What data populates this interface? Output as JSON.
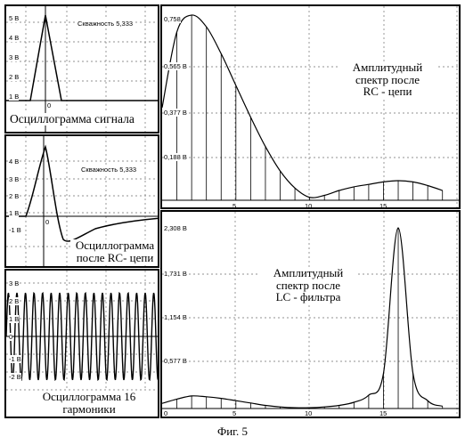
{
  "figure_caption": "Фиг. 5",
  "colors": {
    "line": "#000000",
    "grid": "#6f6f6f",
    "background": "#ffffff"
  },
  "panels": {
    "osc_signal": {
      "caption": "Осциллограмма сигнала",
      "duty_label": "Скважность 5,333",
      "y_ticks": [
        "5 В",
        "4 В",
        "3 В",
        "2 В",
        "1 В"
      ],
      "x_tick": "0"
    },
    "osc_rc": {
      "caption_line1": "Осциллограмма",
      "caption_line2": "после  RC- цепи",
      "duty_label": "Скважность 5,333",
      "y_ticks": [
        "4 В",
        "3 В",
        "2 В",
        "1 В",
        "-1 В"
      ],
      "x_tick": "0"
    },
    "osc_h16": {
      "caption_line1": "Осциллограмма 16",
      "caption_line2": "гармоники",
      "y_ticks": [
        "3 В",
        "2 В",
        "1 В",
        "0",
        "-1 В",
        "-2 В"
      ]
    },
    "spec_rc": {
      "caption_line1": "Амплитудный",
      "caption_line2": "спектр после",
      "caption_line3": "RC - цепи",
      "y_ticks": [
        "0,758",
        "0,565 В",
        "0,377 В",
        "0,188 В"
      ],
      "x_ticks": [
        "5",
        "10",
        "15"
      ]
    },
    "spec_lc": {
      "caption_line1": "Амплитудный",
      "caption_line2": "спектр после",
      "caption_line3": "LC - фильтра",
      "y_ticks": [
        "2,308 В",
        "1,731 В",
        "1,154 В",
        "0,577 В"
      ],
      "x_ticks": [
        "0",
        "5",
        "10",
        "15"
      ]
    }
  },
  "chart_data": [
    {
      "type": "line",
      "name": "spec_rc",
      "x_range": [
        0,
        19.5
      ],
      "ylim": [
        0,
        0.758
      ],
      "harmonics_x": [
        1,
        2,
        3,
        4,
        5,
        6,
        7,
        8,
        9,
        10,
        11,
        12,
        13,
        14,
        15,
        16,
        17,
        18,
        19
      ],
      "harmonics_y": [
        0.69,
        0.758,
        0.71,
        0.6,
        0.47,
        0.34,
        0.22,
        0.12,
        0.05,
        0.012,
        0.02,
        0.04,
        0.055,
        0.065,
        0.075,
        0.08,
        0.075,
        0.06,
        0.04
      ]
    },
    {
      "type": "line",
      "name": "spec_lc",
      "x_range": [
        0,
        19.5
      ],
      "ylim": [
        0,
        2.308
      ],
      "harmonics_x": [
        1,
        2,
        3,
        4,
        5,
        6,
        7,
        8,
        9,
        10,
        11,
        12,
        13,
        14,
        15,
        16,
        17,
        18,
        19
      ],
      "harmonics_y": [
        0.12,
        0.16,
        0.15,
        0.13,
        0.1,
        0.07,
        0.04,
        0.02,
        0.01,
        0.01,
        0.02,
        0.04,
        0.08,
        0.17,
        0.45,
        2.308,
        0.45,
        0.1,
        0.03
      ]
    }
  ]
}
